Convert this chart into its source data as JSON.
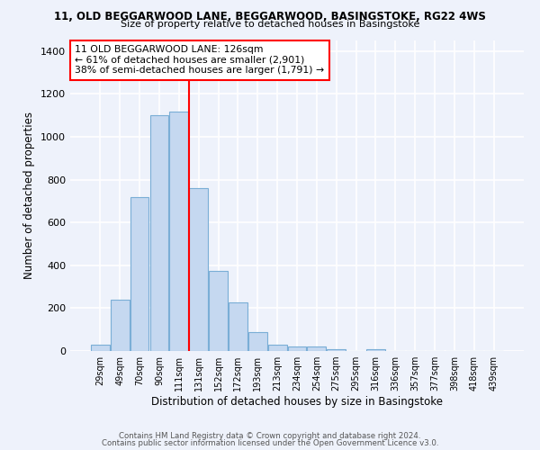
{
  "title1": "11, OLD BEGGARWOOD LANE, BEGGARWOOD, BASINGSTOKE, RG22 4WS",
  "title2": "Size of property relative to detached houses in Basingstoke",
  "xlabel": "Distribution of detached houses by size in Basingstoke",
  "ylabel": "Number of detached properties",
  "bar_labels": [
    "29sqm",
    "49sqm",
    "70sqm",
    "90sqm",
    "111sqm",
    "131sqm",
    "152sqm",
    "172sqm",
    "193sqm",
    "213sqm",
    "234sqm",
    "254sqm",
    "275sqm",
    "295sqm",
    "316sqm",
    "336sqm",
    "357sqm",
    "377sqm",
    "398sqm",
    "418sqm",
    "439sqm"
  ],
  "bar_values": [
    30,
    240,
    720,
    1100,
    1120,
    760,
    375,
    225,
    90,
    30,
    20,
    20,
    10,
    0,
    10,
    0,
    0,
    0,
    0,
    0,
    0
  ],
  "bar_color": "#c5d8f0",
  "bar_edge_color": "#7aaed6",
  "vline_x": 4.5,
  "vline_color": "red",
  "annotation_title": "11 OLD BEGGARWOOD LANE: 126sqm",
  "annotation_line1": "← 61% of detached houses are smaller (2,901)",
  "annotation_line2": "38% of semi-detached houses are larger (1,791) →",
  "annotation_box_color": "white",
  "annotation_box_edge": "red",
  "ylim": [
    0,
    1450
  ],
  "yticks": [
    0,
    200,
    400,
    600,
    800,
    1000,
    1200,
    1400
  ],
  "footer1": "Contains HM Land Registry data © Crown copyright and database right 2024.",
  "footer2": "Contains public sector information licensed under the Open Government Licence v3.0.",
  "bg_color": "#eef2fb",
  "grid_color": "white"
}
